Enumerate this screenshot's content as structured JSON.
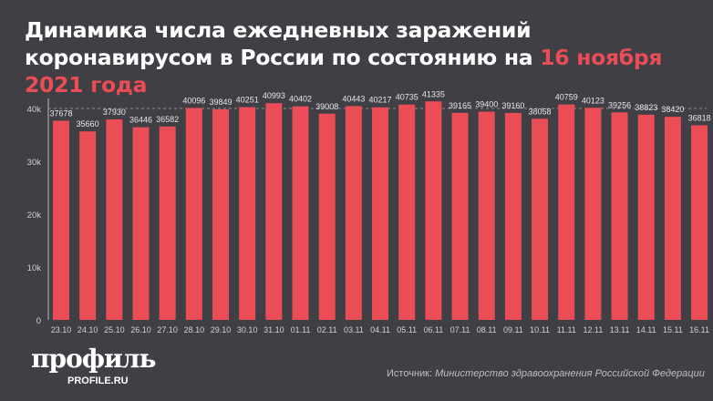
{
  "title": {
    "part1": "Динамика числа ежедневных заражений коронавирусом в России по состоянию на ",
    "highlight": "16 ноября 2021 года"
  },
  "colors": {
    "bar": "#ea4d56",
    "background": "#403f45",
    "highlight": "#ea4d56"
  },
  "logo": {
    "name": "профиль",
    "site": "PROFILE.RU"
  },
  "source": {
    "label": "Источник:",
    "text": "Министерство здравоохранения Российской Федерации"
  },
  "chart_data": {
    "type": "bar",
    "categories": [
      "23.10",
      "24.10",
      "25.10",
      "26.10",
      "27.10",
      "28.10",
      "29.10",
      "30.10",
      "31.10",
      "01.11",
      "02.11",
      "03.11",
      "04.11",
      "05.11",
      "06.11",
      "07.11",
      "08.11",
      "09.11",
      "10.11",
      "11.11",
      "12.11",
      "13.11",
      "14.11",
      "15.11",
      "16.11"
    ],
    "values": [
      37678,
      35660,
      37930,
      36446,
      36582,
      40096,
      39849,
      40251,
      40993,
      40402,
      39008,
      40443,
      40217,
      40735,
      41335,
      39165,
      39400,
      39160,
      38058,
      40759,
      40123,
      39256,
      38823,
      38420,
      36818
    ],
    "yticks": [
      0,
      10000,
      20000,
      30000,
      40000
    ],
    "ytick_labels": [
      "0",
      "10k",
      "20k",
      "30k",
      "40k"
    ],
    "ylim": [
      0,
      40000
    ],
    "grid": "dashed line at 40k"
  }
}
